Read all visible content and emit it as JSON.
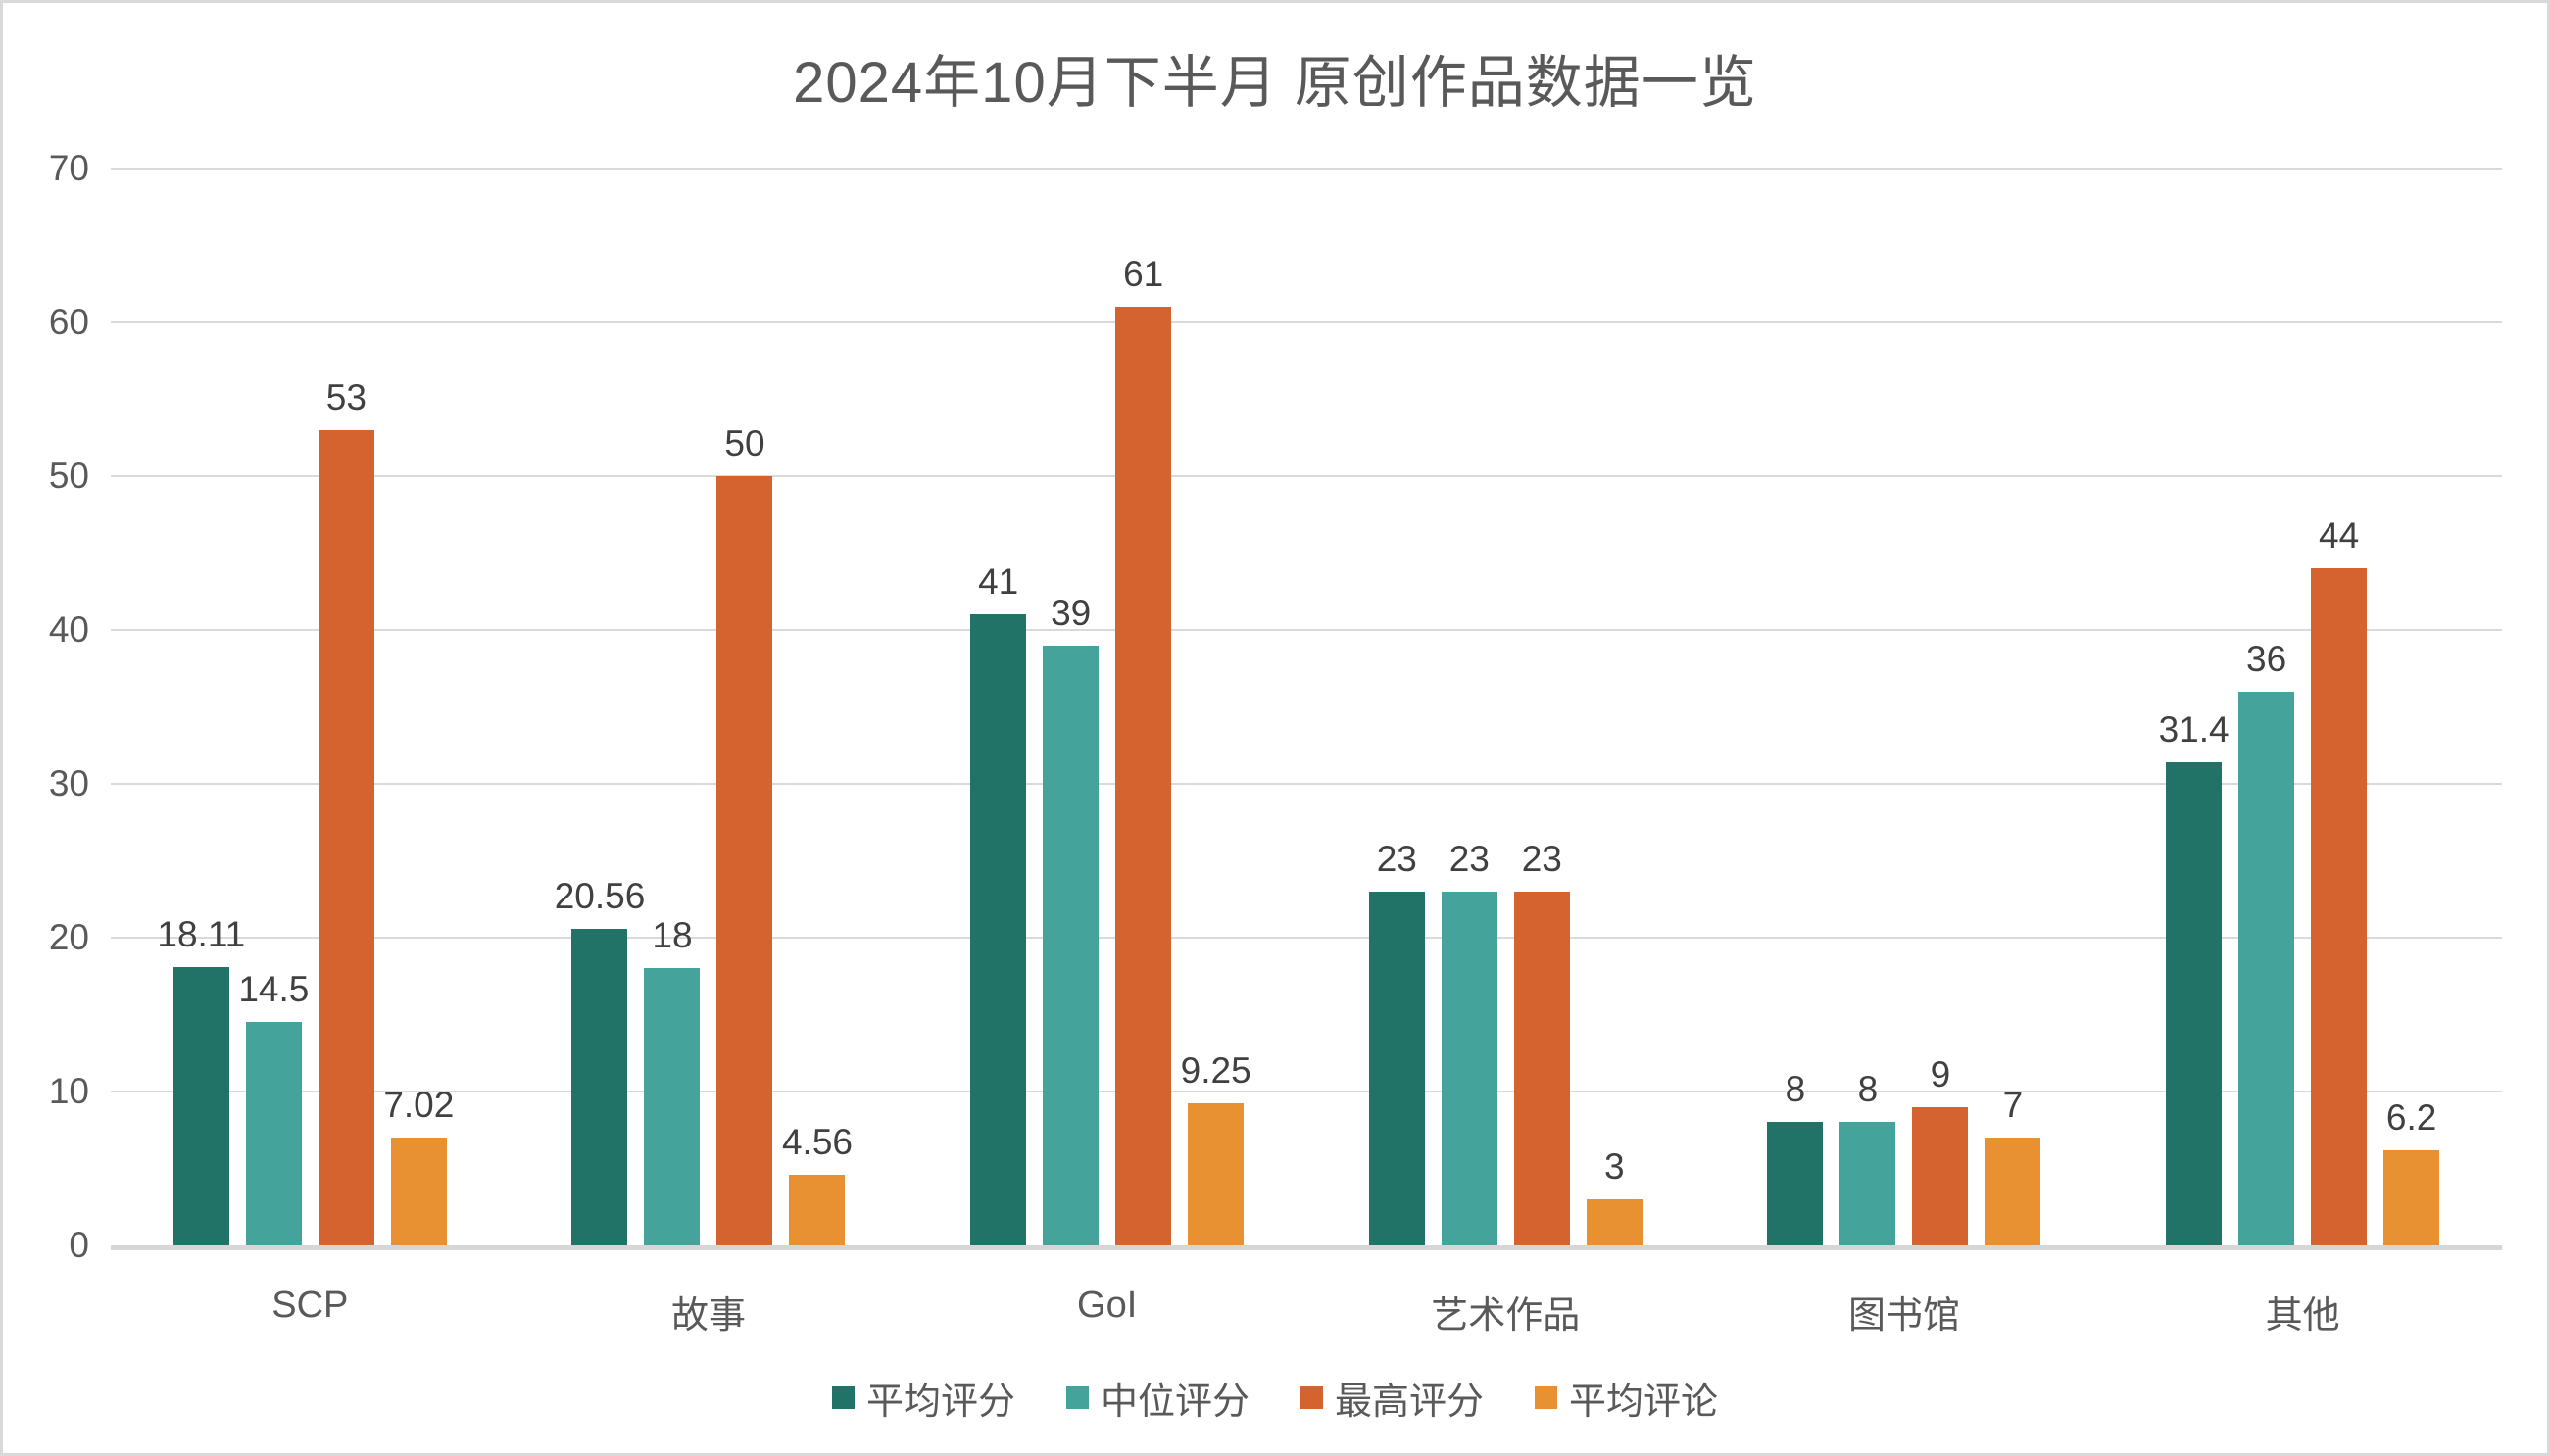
{
  "title": "2024年10月下半月 原创作品数据一览",
  "chart_data": {
    "type": "bar",
    "title": "2024年10月下半月 原创作品数据一览",
    "categories": [
      "SCP",
      "故事",
      "GoI",
      "艺术作品",
      "图书馆",
      "其他"
    ],
    "series": [
      {
        "name": "平均评分",
        "color": "#217368",
        "values": [
          18.11,
          20.56,
          41,
          23,
          8,
          31.4
        ],
        "labels": [
          "18.11",
          "20.56",
          "41",
          "23",
          "8",
          "31.4"
        ]
      },
      {
        "name": "中位评分",
        "color": "#44A49B",
        "values": [
          14.5,
          18,
          39,
          23,
          8,
          36
        ],
        "labels": [
          "14.5",
          "18",
          "39",
          "23",
          "8",
          "36"
        ]
      },
      {
        "name": "最高评分",
        "color": "#D5632F",
        "values": [
          53,
          50,
          61,
          23,
          9,
          44
        ],
        "labels": [
          "53",
          "50",
          "61",
          "23",
          "9",
          "44"
        ]
      },
      {
        "name": "平均评论",
        "color": "#E89132",
        "values": [
          7.02,
          4.56,
          9.25,
          3,
          7,
          6.2
        ],
        "labels": [
          "7.02",
          "4.56",
          "9.25",
          "3",
          "7",
          "6.2"
        ]
      }
    ],
    "ylim": [
      0,
      70
    ],
    "yticks": [
      0,
      10,
      20,
      30,
      40,
      50,
      60,
      70
    ],
    "ytick_labels": [
      "0",
      "10",
      "20",
      "30",
      "40",
      "50",
      "60",
      "70"
    ],
    "grid": true,
    "legend_position": "bottom",
    "legend_entries": [
      "平均评分",
      "中位评分",
      "最高评分",
      "平均评论"
    ]
  },
  "colors": {
    "background": "#FFFFFF",
    "border": "#D9D9D9",
    "gridline": "#D9D9D9",
    "axis_baseline": "#D6D6D6",
    "axis_text": "#595959",
    "title_text": "#595959",
    "data_label_text": "#404040"
  }
}
